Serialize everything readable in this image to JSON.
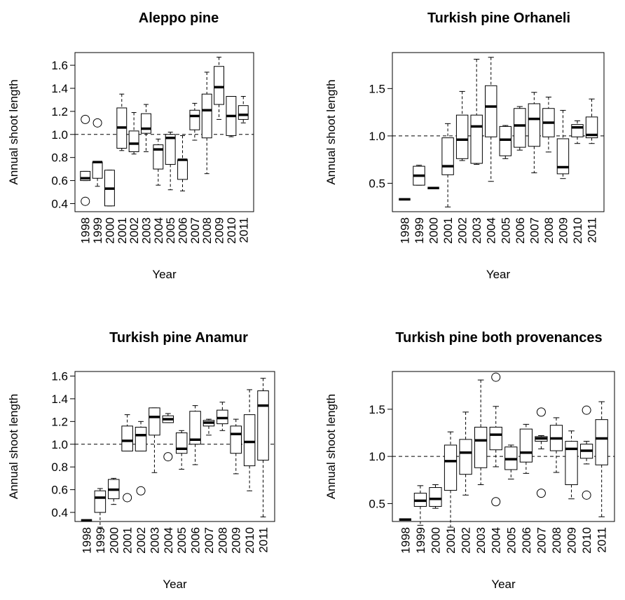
{
  "chart_data": [
    {
      "type": "boxplot",
      "title": "Aleppo pine",
      "x_label": "Year",
      "y_label": "Annual shoot length",
      "categories": [
        "1998",
        "1999",
        "2000",
        "2001",
        "2002",
        "2003",
        "2004",
        "2005",
        "2006",
        "2007",
        "2008",
        "2009",
        "2010",
        "2011"
      ],
      "whisker_low": [
        0.6,
        0.55,
        0.38,
        0.86,
        0.83,
        0.85,
        0.56,
        0.52,
        0.51,
        0.95,
        0.66,
        1.13,
        0.98,
        1.1
      ],
      "q1": [
        0.6,
        0.62,
        0.38,
        0.88,
        0.85,
        1.01,
        0.7,
        0.74,
        0.61,
        1.04,
        0.97,
        1.26,
        0.99,
        1.13
      ],
      "median": [
        0.62,
        0.76,
        0.53,
        1.06,
        0.92,
        1.05,
        0.87,
        0.97,
        0.78,
        1.16,
        1.21,
        1.41,
        1.16,
        1.17
      ],
      "q3": [
        0.68,
        0.76,
        0.69,
        1.23,
        1.03,
        1.18,
        0.91,
        1.0,
        0.78,
        1.21,
        1.35,
        1.59,
        1.33,
        1.25
      ],
      "whisker_high": [
        0.68,
        0.76,
        0.69,
        1.35,
        1.19,
        1.26,
        0.96,
        1.02,
        0.99,
        1.27,
        1.54,
        1.67,
        1.33,
        1.33
      ],
      "outliers": [
        [
          1.13,
          0.42
        ],
        [
          1.1
        ],
        [],
        [],
        [],
        [],
        [],
        [],
        [],
        [],
        [],
        [],
        [],
        []
      ],
      "reference_line": 1,
      "ylim": [
        0.33,
        1.71
      ],
      "yticks": [
        0.4,
        0.6,
        0.8,
        {
          "value": 1,
          "label": "1.0"
        },
        1.2,
        1.4,
        1.6
      ]
    },
    {
      "type": "boxplot",
      "title": "Turkish pine Orhaneli",
      "x_label": "Year",
      "y_label": "Annual shoot length",
      "categories": [
        "1998",
        "1999",
        "2000",
        "2001",
        "2002",
        "2003",
        "2004",
        "2005",
        "2006",
        "2007",
        "2008",
        "2009",
        "2010",
        "2011"
      ],
      "whisker_low": [
        0.33,
        0.48,
        0.45,
        0.25,
        0.74,
        0.7,
        0.52,
        0.76,
        0.85,
        0.61,
        0.83,
        0.55,
        0.92,
        0.92
      ],
      "q1": [
        0.33,
        0.48,
        0.45,
        0.59,
        0.76,
        0.71,
        0.99,
        0.79,
        0.88,
        0.89,
        0.99,
        0.6,
        0.99,
        0.98
      ],
      "median": [
        0.33,
        0.58,
        0.45,
        0.68,
        0.96,
        1.1,
        1.31,
        0.96,
        1.11,
        1.18,
        1.14,
        0.67,
        1.09,
        1.01
      ],
      "q3": [
        0.33,
        0.68,
        0.45,
        0.98,
        1.22,
        1.22,
        1.53,
        1.1,
        1.29,
        1.34,
        1.29,
        0.97,
        1.12,
        1.2
      ],
      "whisker_high": [
        0.33,
        0.69,
        0.45,
        1.13,
        1.47,
        1.81,
        1.83,
        1.11,
        1.31,
        1.46,
        1.41,
        1.27,
        1.16,
        1.39
      ],
      "outliers": [
        [],
        [],
        [],
        [],
        [],
        [],
        [],
        [],
        [],
        [],
        [],
        [],
        [],
        []
      ],
      "reference_line": 1,
      "ylim": [
        0.2,
        1.88
      ],
      "yticks": [
        0.5,
        {
          "value": 1,
          "label": "1.0"
        },
        1.5
      ]
    },
    {
      "type": "boxplot",
      "title": "Turkish pine Anamur",
      "x_label": "Year",
      "y_label": "Annual shoot length",
      "categories": [
        "1998",
        "1999",
        "2000",
        "2001",
        "2002",
        "2003",
        "2004",
        "2005",
        "2006",
        "2007",
        "2008",
        "2009",
        "2010",
        "2011"
      ],
      "whisker_low": [
        0.33,
        0.27,
        0.47,
        0.94,
        0.94,
        0.75,
        1.19,
        0.78,
        0.82,
        1.08,
        1.12,
        0.74,
        0.59,
        0.36
      ],
      "q1": [
        0.33,
        0.4,
        0.52,
        0.94,
        0.94,
        1.08,
        1.19,
        0.92,
        1.0,
        1.16,
        1.18,
        0.92,
        0.81,
        0.86
      ],
      "median": [
        0.33,
        0.53,
        0.6,
        1.03,
        1.08,
        1.24,
        1.22,
        0.96,
        1.04,
        1.19,
        1.23,
        1.09,
        1.02,
        1.34
      ],
      "q3": [
        0.33,
        0.59,
        0.69,
        1.16,
        1.15,
        1.32,
        1.25,
        1.1,
        1.29,
        1.21,
        1.3,
        1.16,
        1.26,
        1.47
      ],
      "whisker_high": [
        0.33,
        0.61,
        0.7,
        1.26,
        1.2,
        1.32,
        1.27,
        1.12,
        1.34,
        1.22,
        1.37,
        1.22,
        1.48,
        1.58
      ],
      "outliers": [
        [],
        [],
        [],
        [
          0.53
        ],
        [
          0.59
        ],
        [],
        [
          0.89
        ],
        [],
        [],
        [],
        [],
        [],
        [],
        []
      ],
      "reference_line": 1,
      "ylim": [
        0.32,
        1.64
      ],
      "yticks": [
        0.4,
        0.6,
        0.8,
        {
          "value": 1,
          "label": "1.0"
        },
        1.2,
        1.4,
        1.6
      ]
    },
    {
      "type": "boxplot",
      "title": "Turkish pine both provenances",
      "x_label": "Year",
      "y_label": "Annual shoot length",
      "categories": [
        "1998",
        "1999",
        "2000",
        "2001",
        "2002",
        "2003",
        "2004",
        "2005",
        "2006",
        "2007",
        "2008",
        "2009",
        "2010",
        "2011"
      ],
      "whisker_low": [
        0.33,
        0.27,
        0.45,
        0.25,
        0.59,
        0.7,
        0.89,
        0.76,
        0.82,
        1.08,
        0.83,
        0.55,
        0.92,
        0.36
      ],
      "q1": [
        0.33,
        0.47,
        0.47,
        0.64,
        0.81,
        0.88,
        1.07,
        0.86,
        0.94,
        1.16,
        1.06,
        0.7,
        0.98,
        0.91
      ],
      "median": [
        0.33,
        0.53,
        0.55,
        0.95,
        1.04,
        1.17,
        1.23,
        0.97,
        1.04,
        1.19,
        1.19,
        1.08,
        1.06,
        1.19
      ],
      "q3": [
        0.33,
        0.61,
        0.67,
        1.12,
        1.18,
        1.31,
        1.31,
        1.1,
        1.29,
        1.21,
        1.33,
        1.16,
        1.13,
        1.39
      ],
      "whisker_high": [
        0.33,
        0.69,
        0.7,
        1.26,
        1.47,
        1.81,
        1.53,
        1.12,
        1.34,
        1.22,
        1.41,
        1.27,
        1.16,
        1.58
      ],
      "outliers": [
        [],
        [],
        [],
        [],
        [],
        [],
        [
          1.84,
          0.52
        ],
        [],
        [],
        [
          1.47,
          0.61
        ],
        [],
        [],
        [
          1.49,
          0.59
        ],
        []
      ],
      "reference_line": 1,
      "ylim": [
        0.31,
        1.9
      ],
      "yticks": [
        0.5,
        {
          "value": 1,
          "label": "1.0"
        },
        1.5
      ]
    }
  ]
}
